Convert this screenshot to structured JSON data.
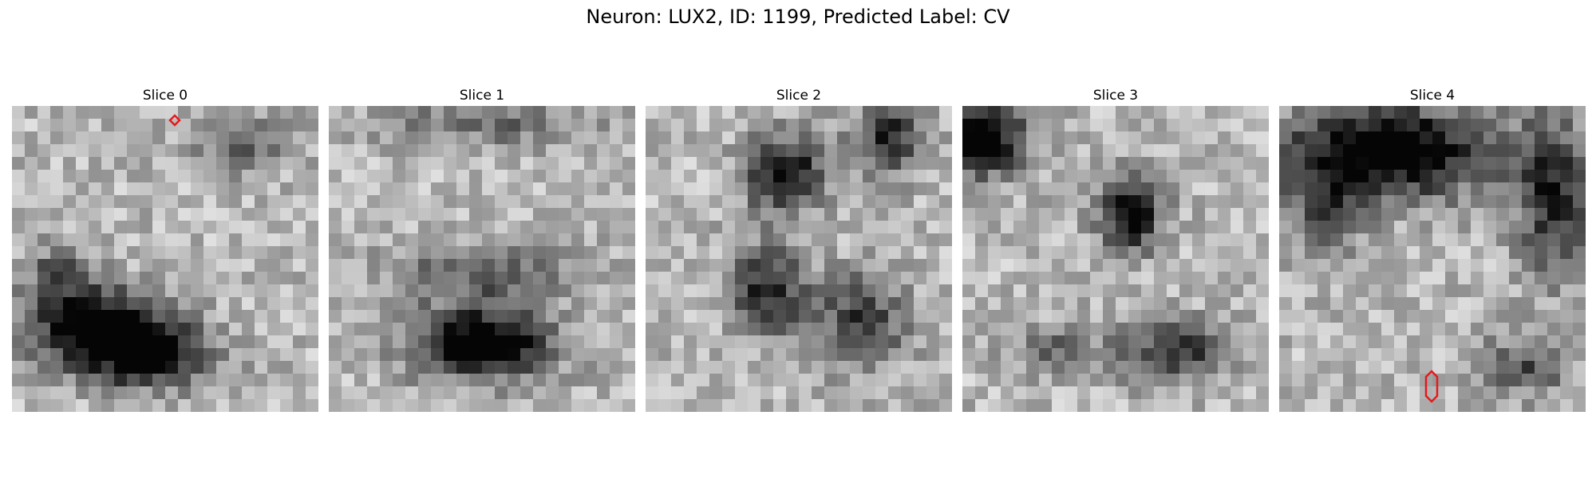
{
  "figure": {
    "title": "Neuron: LUX2, ID: 1199, Predicted Label: CV"
  },
  "panels": [
    {
      "title": "Slice 0",
      "colormap": "gray",
      "dark_blobs": [
        [
          0.28,
          0.72,
          0.22,
          0.12,
          0.85
        ],
        [
          0.45,
          0.82,
          0.2,
          0.1,
          0.7
        ],
        [
          0.15,
          0.55,
          0.1,
          0.1,
          0.35
        ],
        [
          0.75,
          0.12,
          0.15,
          0.1,
          0.3
        ]
      ],
      "marker": {
        "shape": "diamond",
        "color": "#e41a1c"
      }
    },
    {
      "title": "Slice 1",
      "colormap": "gray",
      "dark_blobs": [
        [
          0.5,
          0.78,
          0.22,
          0.11,
          0.9
        ],
        [
          0.5,
          0.55,
          0.32,
          0.1,
          0.35
        ],
        [
          0.5,
          0.05,
          0.35,
          0.08,
          0.3
        ]
      ],
      "marker": null
    },
    {
      "title": "Slice 2",
      "colormap": "gray",
      "dark_blobs": [
        [
          0.45,
          0.22,
          0.12,
          0.12,
          0.75
        ],
        [
          0.4,
          0.6,
          0.12,
          0.15,
          0.6
        ],
        [
          0.8,
          0.1,
          0.12,
          0.12,
          0.55
        ],
        [
          0.7,
          0.7,
          0.15,
          0.15,
          0.5
        ]
      ],
      "marker": null
    },
    {
      "title": "Slice 3",
      "colormap": "gray",
      "dark_blobs": [
        [
          0.05,
          0.1,
          0.15,
          0.12,
          0.9
        ],
        [
          0.55,
          0.35,
          0.1,
          0.12,
          0.75
        ],
        [
          0.7,
          0.8,
          0.18,
          0.1,
          0.55
        ],
        [
          0.3,
          0.8,
          0.15,
          0.08,
          0.3
        ]
      ],
      "marker": null
    },
    {
      "title": "Slice 4",
      "colormap": "gray",
      "dark_blobs": [
        [
          0.35,
          0.15,
          0.35,
          0.15,
          0.85
        ],
        [
          0.9,
          0.3,
          0.12,
          0.25,
          0.6
        ],
        [
          0.15,
          0.35,
          0.12,
          0.15,
          0.4
        ],
        [
          0.8,
          0.85,
          0.15,
          0.1,
          0.4
        ]
      ],
      "marker": {
        "shape": "elongated-hexagon",
        "color": "#e41a1c"
      }
    }
  ]
}
